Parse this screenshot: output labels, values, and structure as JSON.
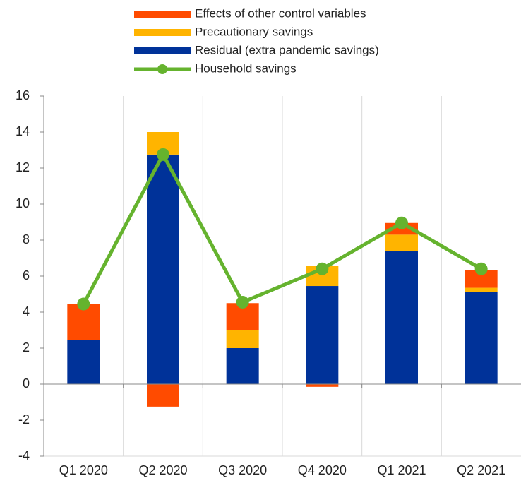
{
  "chart_data": {
    "type": "bar",
    "stacked": true,
    "categories": [
      "Q1 2020",
      "Q2 2020",
      "Q3 2020",
      "Q4 2020",
      "Q1 2021",
      "Q2 2021"
    ],
    "series": [
      {
        "name": "Residual (extra pandemic savings)",
        "color": "#003299",
        "type": "bar",
        "values": [
          2.45,
          12.75,
          2.0,
          5.45,
          7.4,
          5.1
        ]
      },
      {
        "name": "Precautionary savings",
        "color": "#ffb400",
        "type": "bar",
        "values": [
          0,
          1.25,
          1.0,
          1.1,
          0.9,
          0.25
        ]
      },
      {
        "name": "Effects of other control variables",
        "color": "#ff4b00",
        "type": "bar",
        "values": [
          2.0,
          -1.25,
          1.5,
          -0.15,
          0.65,
          1.0
        ]
      },
      {
        "name": "Household savings",
        "color": "#65b32e",
        "type": "line",
        "values": [
          4.45,
          12.75,
          4.55,
          6.4,
          8.95,
          6.4
        ]
      }
    ],
    "ylim": [
      -4,
      16
    ],
    "yticks": [
      -4,
      -2,
      0,
      2,
      4,
      6,
      8,
      10,
      12,
      14,
      16
    ],
    "grid": true
  }
}
